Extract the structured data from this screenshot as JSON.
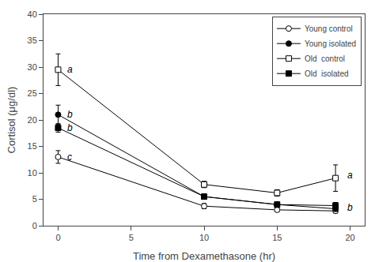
{
  "chart_data": {
    "type": "line",
    "xlabel": "Time from Dexamethasone (hr)",
    "ylabel": "Cortisol (μg/dl)",
    "x": [
      0,
      10,
      15,
      19
    ],
    "series": [
      {
        "name": "Young control",
        "color": "#000000",
        "marker": "circle-open",
        "values": [
          13.0,
          3.7,
          3.0,
          2.8
        ],
        "error": [
          1.2,
          0.5,
          0.4,
          0.4
        ]
      },
      {
        "name": "Young isolated",
        "color": "#000000",
        "marker": "circle",
        "values": [
          21.0,
          5.5,
          4.0,
          3.2
        ],
        "error": [
          1.8,
          0.5,
          0.4,
          0.5
        ]
      },
      {
        "name": "Old  control",
        "color": "#000000",
        "marker": "square-open",
        "values": [
          29.5,
          7.8,
          6.2,
          9.0
        ],
        "error": [
          3.0,
          0.6,
          0.6,
          2.5
        ]
      },
      {
        "name": "Old  isolated",
        "color": "#000000",
        "marker": "square",
        "values": [
          18.5,
          5.5,
          4.0,
          3.8
        ],
        "error": [
          0.8,
          0.5,
          0.5,
          0.6
        ]
      }
    ],
    "xlim": [
      -1,
      21
    ],
    "ylim": [
      0,
      40
    ],
    "xticks": [
      0,
      5,
      10,
      15,
      20
    ],
    "yticks": [
      0,
      5,
      10,
      15,
      20,
      25,
      30,
      35,
      40
    ],
    "grid": false,
    "legend": "upper right",
    "annotations": [
      {
        "text": "a",
        "x": 0.5,
        "y": 29.5
      },
      {
        "text": "b",
        "x": 0.5,
        "y": 21.0
      },
      {
        "text": "b",
        "x": 0.5,
        "y": 18.5
      },
      {
        "text": "c",
        "x": 0.5,
        "y": 13.0
      },
      {
        "text": "a",
        "x": 19.7,
        "y": 9.5
      },
      {
        "text": "b",
        "x": 19.7,
        "y": 3.5
      }
    ]
  }
}
